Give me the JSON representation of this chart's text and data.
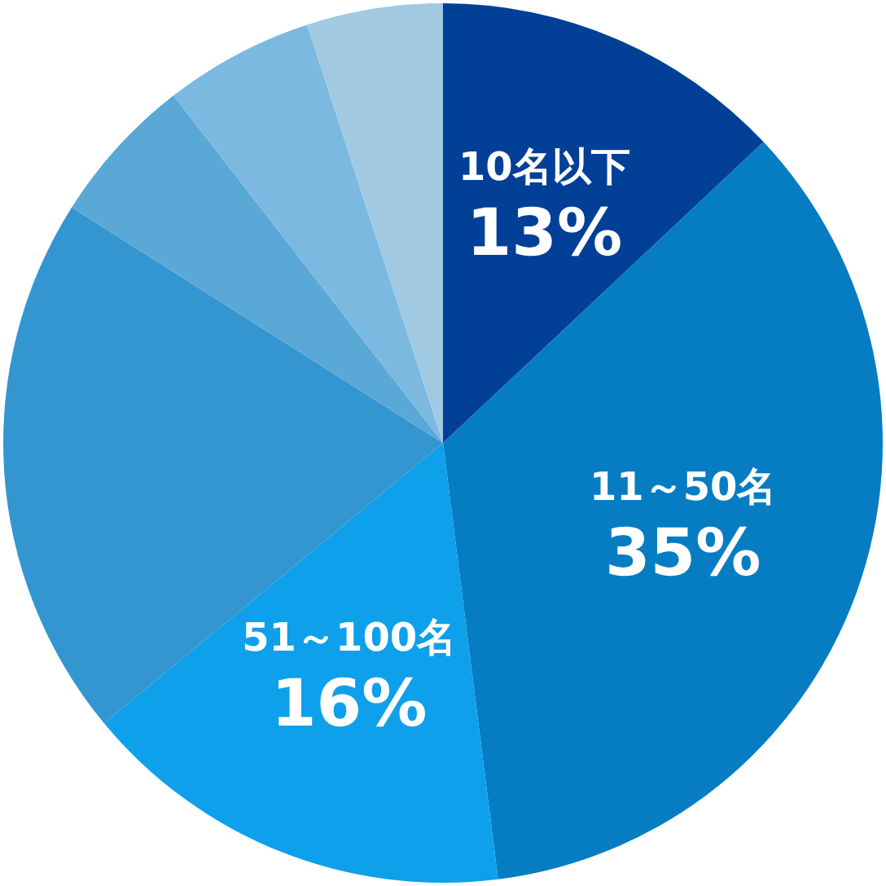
{
  "chart_data": {
    "type": "pie",
    "categories": [
      "10名以下",
      "11～50名",
      "51～100名",
      null,
      null,
      null,
      null
    ],
    "values": [
      13,
      35,
      16,
      20,
      5.5,
      5.5,
      5
    ],
    "colors": [
      "#023f97",
      "#067dc3",
      "#0ea0ea",
      "#3396d0",
      "#5aa8d5",
      "#7cb9e1",
      "#a1c9e2"
    ],
    "value_labels": [
      "13%",
      "35%",
      "16%",
      null,
      null,
      null,
      null
    ]
  }
}
